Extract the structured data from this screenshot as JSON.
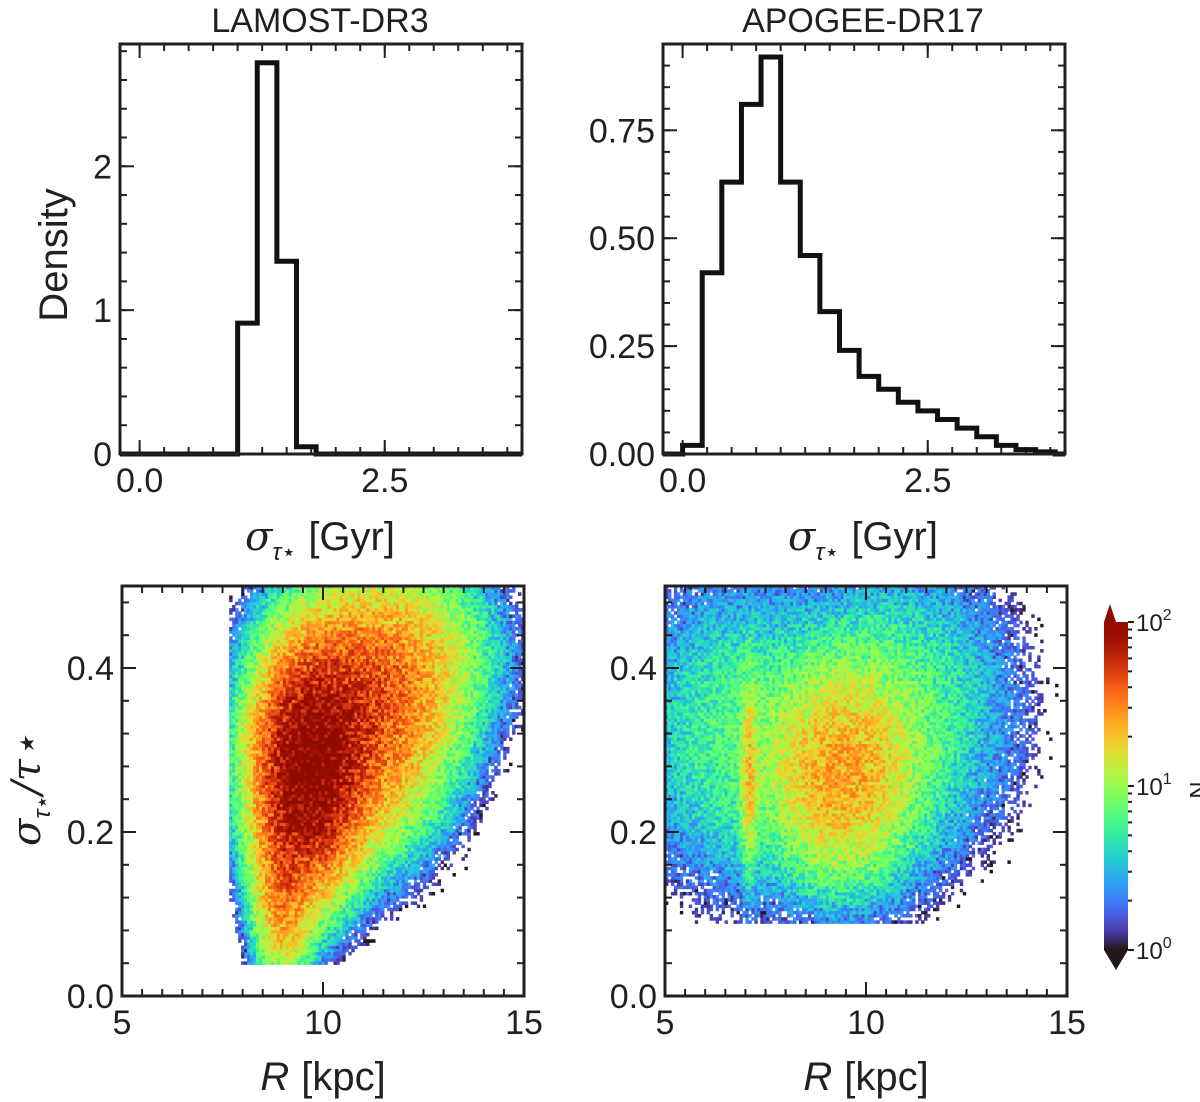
{
  "chart_data": [
    {
      "id": "lamost-hist",
      "type": "histogram",
      "title": "LAMOST-DR3",
      "xlabel_symbol": "σ",
      "xlabel_sub": "τ⋆",
      "xlabel_unit": "[Gyr]",
      "ylabel": "Density",
      "xlim": [
        -0.2,
        3.9
      ],
      "ylim": [
        0,
        2.85
      ],
      "xticks": [
        0.0,
        2.5
      ],
      "xtick_labels": [
        "0.0",
        "2.5"
      ],
      "yticks": [
        0,
        1,
        2
      ],
      "ytick_labels": [
        "0",
        "1",
        "2"
      ],
      "bin_edges": [
        -0.2,
        1.0,
        1.2,
        1.4,
        1.6,
        1.8,
        2.0,
        3.9
      ],
      "values": [
        0,
        0.91,
        2.72,
        1.34,
        0.05,
        0,
        0
      ]
    },
    {
      "id": "apogee-hist",
      "type": "histogram",
      "title": "APOGEE-DR17",
      "xlabel_symbol": "σ",
      "xlabel_sub": "τ⋆",
      "xlabel_unit": "[Gyr]",
      "ylabel": "",
      "xlim": [
        -0.2,
        3.9
      ],
      "ylim": [
        0,
        0.95
      ],
      "xticks": [
        0.0,
        2.5
      ],
      "xtick_labels": [
        "0.0",
        "2.5"
      ],
      "yticks": [
        0.0,
        0.25,
        0.5,
        0.75
      ],
      "ytick_labels": [
        "0.00",
        "0.25",
        "0.50",
        "0.75"
      ],
      "bin_edges": [
        -0.2,
        0.0,
        0.2,
        0.4,
        0.6,
        0.8,
        1.0,
        1.2,
        1.4,
        1.6,
        1.8,
        2.0,
        2.2,
        2.4,
        2.6,
        2.8,
        3.0,
        3.2,
        3.4,
        3.6,
        3.8,
        3.9
      ],
      "values": [
        0,
        0.02,
        0.42,
        0.63,
        0.81,
        0.92,
        0.63,
        0.46,
        0.33,
        0.24,
        0.18,
        0.15,
        0.12,
        0.1,
        0.08,
        0.06,
        0.04,
        0.02,
        0.01,
        0.005,
        0
      ]
    },
    {
      "id": "lamost-density",
      "type": "heatmap",
      "xlabel_symbol": "R",
      "xlabel_unit": "[kpc]",
      "ylabel_num": "σ",
      "ylabel_sub": "τ⋆",
      "ylabel_den": "/τ⋆",
      "xlim": [
        5,
        15
      ],
      "ylim": [
        0,
        0.5
      ],
      "xticks": [
        5,
        10,
        15
      ],
      "xtick_labels": [
        "5",
        "10",
        "15"
      ],
      "yticks": [
        0.0,
        0.2,
        0.4
      ],
      "ytick_labels": [
        "0.0",
        "0.2",
        "0.4"
      ],
      "components": [
        {
          "x": 9.6,
          "y": 0.27,
          "sx": 0.75,
          "sy": 0.08,
          "peak": 90
        },
        {
          "x": 10.8,
          "y": 0.34,
          "sx": 1.3,
          "sy": 0.09,
          "peak": 45
        },
        {
          "x": 12.3,
          "y": 0.42,
          "sx": 1.3,
          "sy": 0.07,
          "peak": 12
        },
        {
          "x": 9.0,
          "y": 0.12,
          "sx": 0.45,
          "sy": 0.06,
          "peak": 25
        }
      ],
      "y_min_value": 0.04,
      "x_min_value": 7.7
    },
    {
      "id": "apogee-density",
      "type": "heatmap",
      "xlabel_symbol": "R",
      "xlabel_unit": "[kpc]",
      "xlim": [
        5,
        15
      ],
      "ylim": [
        0,
        0.5
      ],
      "xticks": [
        5,
        10,
        15
      ],
      "xtick_labels": [
        "5",
        "10",
        "15"
      ],
      "yticks": [
        0.0,
        0.2,
        0.4
      ],
      "ytick_labels": [
        "0.0",
        "0.2",
        "0.4"
      ],
      "components": [
        {
          "x": 9.4,
          "y": 0.27,
          "sx": 1.1,
          "sy": 0.08,
          "peak": 22
        },
        {
          "x": 7.1,
          "y": 0.27,
          "sx": 0.12,
          "sy": 0.07,
          "peak": 14
        },
        {
          "x": 6.5,
          "y": 0.32,
          "sx": 1.5,
          "sy": 0.12,
          "peak": 6
        },
        {
          "x": 11.0,
          "y": 0.35,
          "sx": 1.8,
          "sy": 0.12,
          "peak": 6
        }
      ],
      "y_min_value": 0.09,
      "x_min_value": 5.0
    }
  ],
  "colorbar": {
    "label": "N",
    "tick_base": "10",
    "ticks": [
      {
        "exp": "0",
        "value": 1
      },
      {
        "exp": "1",
        "value": 10
      },
      {
        "exp": "2",
        "value": 100
      }
    ],
    "colormap": "turbo",
    "min": 1,
    "max": 100
  }
}
